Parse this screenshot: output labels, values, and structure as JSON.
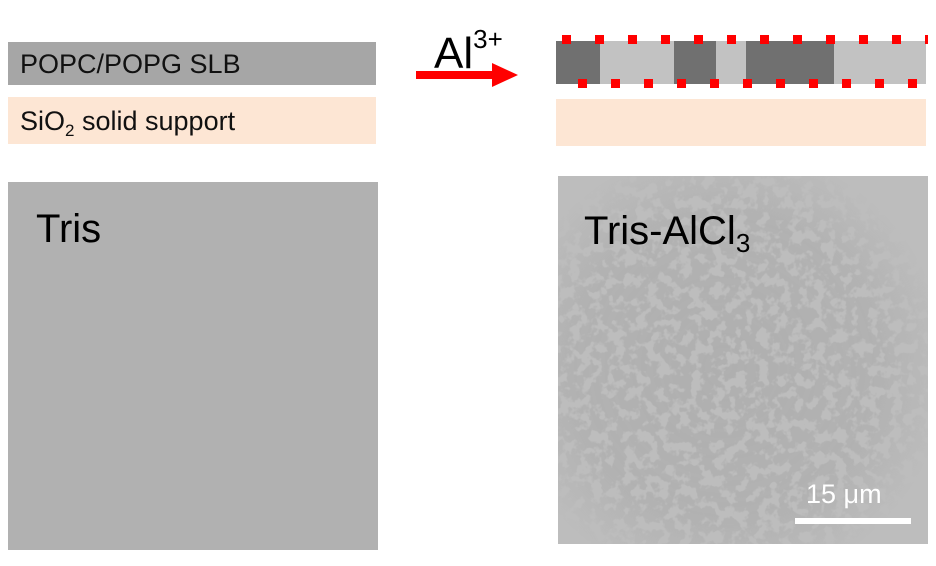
{
  "schematic": {
    "bilayer_label": "POPC/POPG SLB",
    "support_label_main": "SiO",
    "support_label_sub": "2",
    "support_label_rest": " solid support",
    "ion_main": "Al",
    "ion_sup": "3+"
  },
  "panels": {
    "left_label": "Tris",
    "right_label_main": "Tris-AlCl",
    "right_label_sub": "3"
  },
  "scale_bar": {
    "label": "15 μm"
  },
  "colors": {
    "bilayer": "#a6a6a6",
    "domain_dark": "#707070",
    "domain_light": "#c2c2c2",
    "support": "#fde6d4",
    "ion_marker": "#ff0000",
    "arrow": "#ff0000",
    "panel_left": "#b1b1b1",
    "panel_right": "#b9b9b9"
  }
}
